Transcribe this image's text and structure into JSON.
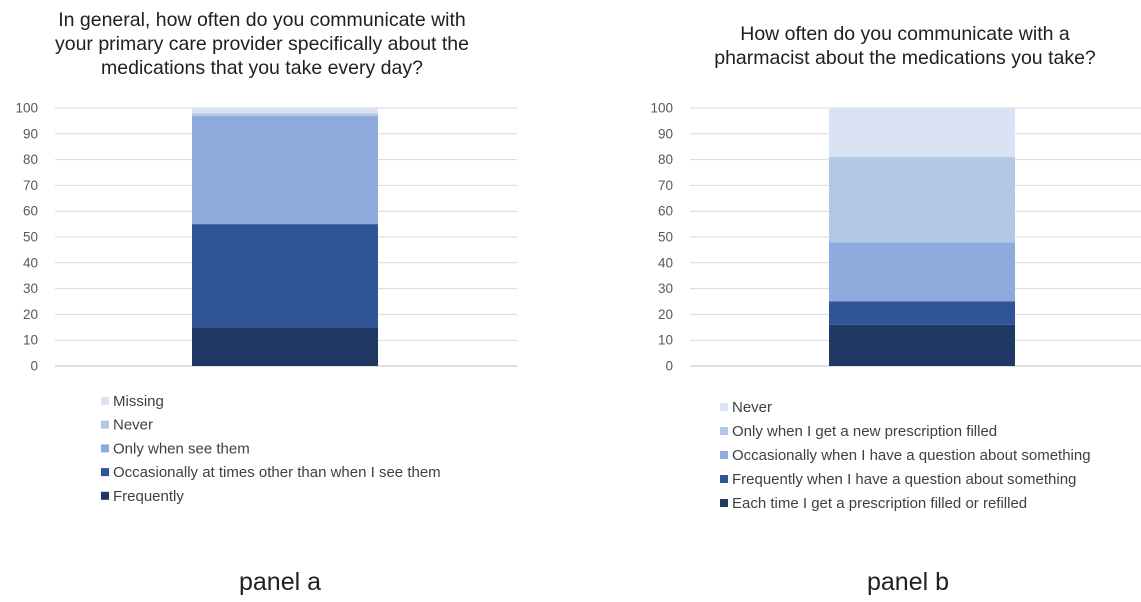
{
  "chart_data": [
    {
      "type": "bar",
      "stacked": true,
      "title_lines": [
        "In general, how often do you communicate with",
        "your primary care provider specifically about the",
        "medications that you take every day?"
      ],
      "panel_label": "panel a",
      "ylim": [
        0,
        100
      ],
      "yticks": [
        0,
        10,
        20,
        30,
        40,
        50,
        60,
        70,
        80,
        90,
        100
      ],
      "grid": true,
      "legend_position": "bottom",
      "series": [
        {
          "name": "Frequently",
          "value": 15,
          "color": "#203864"
        },
        {
          "name": "Occasionally at times other than when I see them",
          "value": 40,
          "color": "#2F5597"
        },
        {
          "name": "Only when see them",
          "value": 42,
          "color": "#8FAADC"
        },
        {
          "name": "Never",
          "value": 1,
          "color": "#B4C7E7"
        },
        {
          "name": "Missing",
          "value": 2,
          "color": "#DAE3F3"
        }
      ]
    },
    {
      "type": "bar",
      "stacked": true,
      "title_lines": [
        "How often do you communicate with a",
        "pharmacist about the medications you take?"
      ],
      "panel_label": "panel b",
      "ylim": [
        0,
        100
      ],
      "yticks": [
        0,
        10,
        20,
        30,
        40,
        50,
        60,
        70,
        80,
        90,
        100
      ],
      "grid": true,
      "legend_position": "bottom",
      "series": [
        {
          "name": "Each time I get a prescription filled or refilled",
          "value": 16,
          "color": "#203864"
        },
        {
          "name": "Frequently when I have a question about something",
          "value": 9,
          "color": "#2F5597"
        },
        {
          "name": "Occasionally when I have a question about something",
          "value": 23,
          "color": "#8FAADC"
        },
        {
          "name": "Only when I get a new prescription filled",
          "value": 33,
          "color": "#B4C7E7"
        },
        {
          "name": "Never",
          "value": 19,
          "color": "#DAE3F3"
        }
      ]
    }
  ]
}
